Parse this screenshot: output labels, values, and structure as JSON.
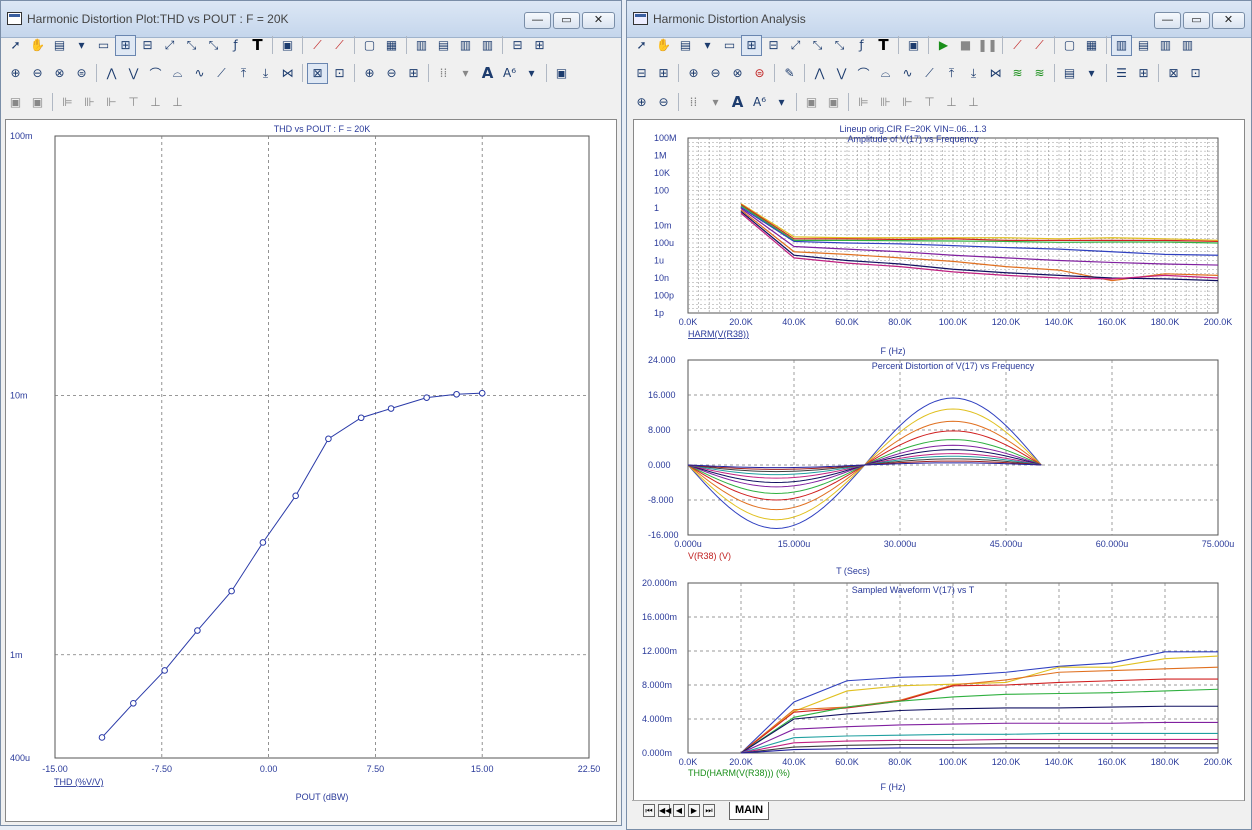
{
  "left_window": {
    "title": "Harmonic Distortion Plot:THD vs POUT : F = 20K",
    "controls": {
      "minimize": "—",
      "maximize": "▭",
      "close": "✕"
    }
  },
  "right_window": {
    "title": "Harmonic Distortion Analysis",
    "controls": {
      "minimize": "—",
      "maximize": "▭",
      "close": "✕"
    }
  },
  "toolbar_icons": [
    "select-arrow-icon",
    "hand-pan-icon",
    "scale-icon",
    "preview-icon",
    "zoom-box-icon",
    "grid-icon",
    "fit-icon",
    "cursor-icon",
    "formula-icon",
    "text-tool-icon",
    "run-icon",
    "stop-icon",
    "pause-icon",
    "line-icon"
  ],
  "tabs": {
    "main": "MAIN"
  },
  "chart_data": [
    {
      "type": "line",
      "title": "THD vs POUT : F = 20K",
      "xlabel": "POUT (dBW)",
      "ylabel": "THD (%V/V)",
      "xscale": "linear",
      "yscale": "log",
      "xlim": [
        -15,
        22.5
      ],
      "x_ticks": [
        "-15.00",
        "-7.50",
        "0.00",
        "7.50",
        "15.00",
        "22.50"
      ],
      "ylim": [
        0.0004,
        0.1
      ],
      "y_ticks": [
        "100m",
        "10m",
        "1m",
        "400u"
      ],
      "grid": true,
      "marker": "circle",
      "color": "#2a3aa8",
      "series": [
        {
          "x": [
            -11.7,
            -9.5,
            -7.3,
            -5.0,
            -2.6,
            -0.4,
            1.9,
            4.2,
            6.5,
            8.6,
            11.1,
            13.2,
            15.0
          ],
          "y": [
            0.00048,
            0.00065,
            0.00087,
            0.00124,
            0.00176,
            0.00271,
            0.0041,
            0.0068,
            0.0082,
            0.0089,
            0.0098,
            0.0101,
            0.0102
          ]
        }
      ]
    },
    {
      "type": "line",
      "title": "Lineup orig.CIR F=20K VIN=.06...1.3",
      "subtitle": "Amplitude of V(17) vs Frequency",
      "xlabel": "F (Hz)",
      "ylabel": "HARM(V(R38))",
      "xscale": "linear",
      "yscale": "log",
      "xlim": [
        0,
        200000
      ],
      "x_ticks": [
        "0.0K",
        "20.0K",
        "40.0K",
        "60.0K",
        "80.0K",
        "100.0K",
        "120.0K",
        "140.0K",
        "160.0K",
        "180.0K",
        "200.0K"
      ],
      "ylim": [
        1e-12,
        100000000.0
      ],
      "y_ticks": [
        "100M",
        "1M",
        "10K",
        "100",
        "1",
        "10m",
        "100u",
        "1u",
        "10n",
        "100p",
        "1p"
      ],
      "grid": true,
      "x": [
        20000,
        40000,
        60000,
        80000,
        100000,
        120000,
        140000,
        160000,
        180000,
        200000
      ],
      "series": [
        {
          "color": "#e0c020",
          "values": [
            3.2,
            0.0005,
            0.0004,
            0.0004,
            0.0004,
            0.0004,
            0.0003,
            0.0004,
            0.0003,
            0.0002
          ]
        },
        {
          "color": "#d02020",
          "values": [
            2.5,
            0.0003,
            0.0003,
            0.00025,
            0.0003,
            0.0002,
            0.0002,
            0.0002,
            0.0002,
            0.00015
          ]
        },
        {
          "color": "#30b040",
          "values": [
            1.8,
            0.0002,
            0.0002,
            0.00018,
            0.00017,
            0.00015,
            0.00012,
            0.00013,
            0.00013,
            0.0001
          ]
        },
        {
          "color": "#3040c0",
          "values": [
            1.2,
            0.00015,
            0.0001,
            8e-05,
            5e-05,
            3e-05,
            2e-05,
            1e-05,
            5e-06,
            4e-06
          ]
        },
        {
          "color": "#8020a0",
          "values": [
            0.9,
            4e-05,
            2e-05,
            1e-05,
            4e-06,
            2e-06,
            1e-06,
            6e-07,
            4e-07,
            3e-07
          ]
        },
        {
          "color": "#e07020",
          "values": [
            0.6,
            1e-05,
            5e-06,
            2e-06,
            8e-07,
            2e-07,
            8e-08,
            5e-09,
            3e-08,
            2e-08
          ]
        },
        {
          "color": "#101060",
          "values": [
            0.4,
            4e-06,
            1e-06,
            4e-07,
            1e-07,
            4e-08,
            2e-08,
            1e-08,
            8e-09,
            5e-09
          ]
        },
        {
          "color": "#c02080",
          "values": [
            0.25,
            2e-06,
            5e-07,
            2e-07,
            5e-08,
            2e-08,
            1e-08,
            8e-09,
            2e-08,
            1e-08
          ]
        }
      ]
    },
    {
      "type": "line",
      "title": "Percent Distortion of V(17) vs Frequency",
      "xlabel": "T (Secs)",
      "ylabel": "V(R38) (V)",
      "xlim": [
        0,
        75
      ],
      "x_unit": "u",
      "x_ticks": [
        "0.000u",
        "15.000u",
        "30.000u",
        "45.000u",
        "60.000u",
        "75.000u"
      ],
      "ylim": [
        -16,
        24
      ],
      "y_ticks": [
        "24.000",
        "16.000",
        "8.000",
        "0.000",
        "-8.000",
        "-16.000"
      ],
      "grid": true,
      "waveform": "half-sine pair over 0..50u, negative lobe to 25u, positive lobe 25u..50u",
      "series": [
        {
          "color": "#3040c0",
          "amplitude_neg": 14.5,
          "amplitude_pos": 15.3
        },
        {
          "color": "#e0c020",
          "amplitude_neg": 12.5,
          "amplitude_pos": 12.8
        },
        {
          "color": "#e07020",
          "amplitude_neg": 10.2,
          "amplitude_pos": 10.0
        },
        {
          "color": "#d02020",
          "amplitude_neg": 8.0,
          "amplitude_pos": 7.8
        },
        {
          "color": "#30b040",
          "amplitude_neg": 6.5,
          "amplitude_pos": 5.8
        },
        {
          "color": "#8020a0",
          "amplitude_neg": 5.0,
          "amplitude_pos": 4.5
        },
        {
          "color": "#101060",
          "amplitude_neg": 4.0,
          "amplitude_pos": 3.5
        },
        {
          "color": "#c02080",
          "amplitude_neg": 3.0,
          "amplitude_pos": 2.6
        },
        {
          "color": "#20a0a0",
          "amplitude_neg": 2.2,
          "amplitude_pos": 2.0
        },
        {
          "color": "#404040",
          "amplitude_neg": 1.5,
          "amplitude_pos": 1.4
        },
        {
          "color": "#a02020",
          "amplitude_neg": 1.0,
          "amplitude_pos": 0.9
        },
        {
          "color": "#2020a0",
          "amplitude_neg": 0.6,
          "amplitude_pos": 0.5
        }
      ]
    },
    {
      "type": "line",
      "title": "Sampled Waveform  V(17) vs T",
      "xlabel": "F (Hz)",
      "ylabel": "THD(HARM(V(R38))) (%)",
      "xlim": [
        0,
        200000
      ],
      "x_ticks": [
        "0.0K",
        "20.0K",
        "40.0K",
        "60.0K",
        "80.0K",
        "100.0K",
        "120.0K",
        "140.0K",
        "160.0K",
        "180.0K",
        "200.0K"
      ],
      "ylim": [
        0,
        0.02
      ],
      "y_ticks": [
        "20.000m",
        "16.000m",
        "12.000m",
        "8.000m",
        "4.000m",
        "0.000m"
      ],
      "grid": true,
      "x": [
        20000,
        40000,
        60000,
        80000,
        100000,
        120000,
        140000,
        160000,
        180000,
        200000
      ],
      "series": [
        {
          "color": "#3040c0",
          "values": [
            0,
            0.006,
            0.0085,
            0.0089,
            0.0091,
            0.0095,
            0.0102,
            0.0106,
            0.0119,
            0.0119
          ]
        },
        {
          "color": "#e0c020",
          "values": [
            0,
            0.0049,
            0.0073,
            0.0079,
            0.0081,
            0.0083,
            0.0101,
            0.0101,
            0.0111,
            0.0114
          ]
        },
        {
          "color": "#e07020",
          "values": [
            0,
            0.0051,
            0.0054,
            0.0062,
            0.008,
            0.0086,
            0.0095,
            0.0097,
            0.0099,
            0.0101
          ]
        },
        {
          "color": "#d02020",
          "values": [
            0,
            0.0048,
            0.0053,
            0.0061,
            0.0079,
            0.008,
            0.0083,
            0.0085,
            0.0087,
            0.0087
          ]
        },
        {
          "color": "#30b040",
          "values": [
            0,
            0.0042,
            0.0054,
            0.0061,
            0.0066,
            0.0069,
            0.007,
            0.0071,
            0.0073,
            0.0075
          ]
        },
        {
          "color": "#101060",
          "values": [
            0,
            0.004,
            0.0046,
            0.005,
            0.0052,
            0.0053,
            0.0053,
            0.0054,
            0.0055,
            0.0055
          ]
        },
        {
          "color": "#8020a0",
          "values": [
            0,
            0.0028,
            0.0031,
            0.0033,
            0.0034,
            0.0035,
            0.0035,
            0.0035,
            0.0036,
            0.0036
          ]
        },
        {
          "color": "#20a0a0",
          "values": [
            0,
            0.0018,
            0.002,
            0.0021,
            0.0022,
            0.0022,
            0.0023,
            0.0023,
            0.0023,
            0.0023
          ]
        },
        {
          "color": "#c02080",
          "values": [
            0,
            0.0012,
            0.0014,
            0.0015,
            0.0015,
            0.0016,
            0.0016,
            0.0016,
            0.0016,
            0.0016
          ]
        },
        {
          "color": "#404040",
          "values": [
            0,
            0.0007,
            0.0009,
            0.001,
            0.001,
            0.0011,
            0.0011,
            0.0011,
            0.0011,
            0.0011
          ]
        },
        {
          "color": "#2020a0",
          "values": [
            0,
            0.0004,
            0.0005,
            0.0006,
            0.0006,
            0.0006,
            0.0006,
            0.0006,
            0.0006,
            0.0006
          ]
        }
      ]
    }
  ]
}
